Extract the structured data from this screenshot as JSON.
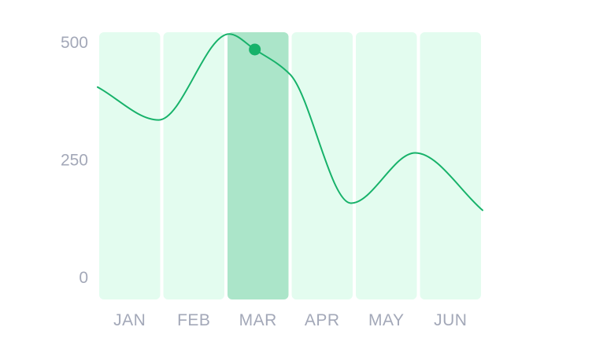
{
  "chart_data": {
    "type": "line",
    "title": "",
    "xlabel": "",
    "ylabel": "",
    "categories": [
      "JAN",
      "FEB",
      "MAR",
      "APR",
      "MAY",
      "JUN"
    ],
    "highlighted_category": "MAR",
    "highlighted_point": {
      "x": 2.45,
      "y": 485
    },
    "y_ticks": [
      "0",
      "250",
      "500"
    ],
    "ylim": [
      0,
      500
    ],
    "grid": false,
    "legend": "none",
    "series": [
      {
        "points": [
          {
            "x": 0,
            "y": 405
          },
          {
            "x": 0.95,
            "y": 335
          },
          {
            "x": 2.05,
            "y": 518
          },
          {
            "x": 2.45,
            "y": 485
          },
          {
            "x": 3.0,
            "y": 432
          },
          {
            "x": 3.95,
            "y": 158
          },
          {
            "x": 4.95,
            "y": 265
          },
          {
            "x": 6,
            "y": 143
          }
        ]
      }
    ],
    "colors": {
      "line": "#17b26a",
      "band": "#e3fcef",
      "band_highlight": "#abe5c9",
      "text": "#a3a8b8"
    }
  }
}
